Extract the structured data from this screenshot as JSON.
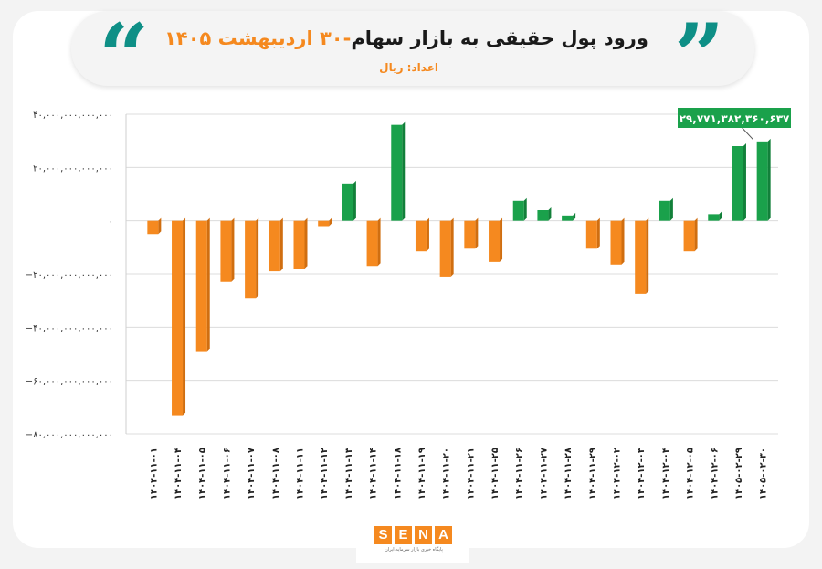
{
  "header": {
    "title": "ورود پول حقیقی به بازار سهام",
    "title_date": "-۳۰ اردیبهشت ۱۴۰۵",
    "subtitle": "اعداد: ریال"
  },
  "logo": {
    "letters": [
      "S",
      "E",
      "N",
      "A"
    ],
    "tagline": "پایگاه خبری بازار سرمایه ایران"
  },
  "colors": {
    "positive": "#1aa14b",
    "negative": "#f5891f",
    "accent": "#0e8f86",
    "callout": "#1aa14b"
  },
  "chart_data": {
    "type": "bar",
    "title": "",
    "xlabel": "",
    "ylabel": "",
    "ylim": [
      -80000000000000,
      40000000000000
    ],
    "y_ticks": [
      40000000000000,
      20000000000000,
      0,
      -20000000000000,
      -40000000000000,
      -60000000000000,
      -80000000000000
    ],
    "y_tick_labels": [
      "۴۰,۰۰۰,۰۰۰,۰۰۰,۰۰۰",
      "۲۰,۰۰۰,۰۰۰,۰۰۰,۰۰۰",
      "۰",
      "−۲۰,۰۰۰,۰۰۰,۰۰۰,۰۰۰",
      "−۴۰,۰۰۰,۰۰۰,۰۰۰,۰۰۰",
      "−۶۰,۰۰۰,۰۰۰,۰۰۰,۰۰۰",
      "−۸۰,۰۰۰,۰۰۰,۰۰۰,۰۰۰"
    ],
    "grid": true,
    "categories": [
      "۱۴۰۴-۱۱-۰۱",
      "۱۴۰۴-۱۱-۰۴",
      "۱۴۰۴-۱۱-۰۵",
      "۱۴۰۴-۱۱-۰۶",
      "۱۴۰۴-۱۱-۰۷",
      "۱۴۰۴-۱۱-۰۸",
      "۱۴۰۴-۱۱-۱۱",
      "۱۴۰۴-۱۱-۱۲",
      "۱۴۰۴-۱۱-۱۳",
      "۱۴۰۴-۱۱-۱۴",
      "۱۴۰۴-۱۱-۱۸",
      "۱۴۰۴-۱۱-۱۹",
      "۱۴۰۴-۱۱-۲۰",
      "۱۴۰۴-۱۱-۲۱",
      "۱۴۰۴-۱۱-۲۵",
      "۱۴۰۴-۱۱-۲۶",
      "۱۴۰۴-۱۱-۲۷",
      "۱۴۰۴-۱۱-۲۸",
      "۱۴۰۴-۱۱-۲۹",
      "۱۴۰۴-۱۲-۰۲",
      "۱۴۰۴-۱۲-۰۳",
      "۱۴۰۴-۱۲-۰۴",
      "۱۴۰۴-۱۲-۰۵",
      "۱۴۰۴-۱۲-۰۶",
      "۱۴۰۵-۰۲-۲۹",
      "۱۴۰۵-۰۲-۳۰"
    ],
    "values": [
      -5000000000000,
      -73000000000000,
      -49000000000000,
      -23000000000000,
      -29000000000000,
      -19000000000000,
      -18000000000000,
      -2000000000000,
      14000000000000,
      -17000000000000,
      36000000000000,
      -11500000000000,
      -21000000000000,
      -10500000000000,
      -15500000000000,
      7500000000000,
      4000000000000,
      2000000000000,
      -10500000000000,
      -16500000000000,
      -27500000000000,
      7500000000000,
      -11500000000000,
      2500000000000,
      28000000000000,
      29771382360637
    ],
    "annotation": {
      "text": "۲۹,۷۷۱,۳۸۲,۳۶۰,۶۳۷",
      "target_index": 25
    }
  }
}
